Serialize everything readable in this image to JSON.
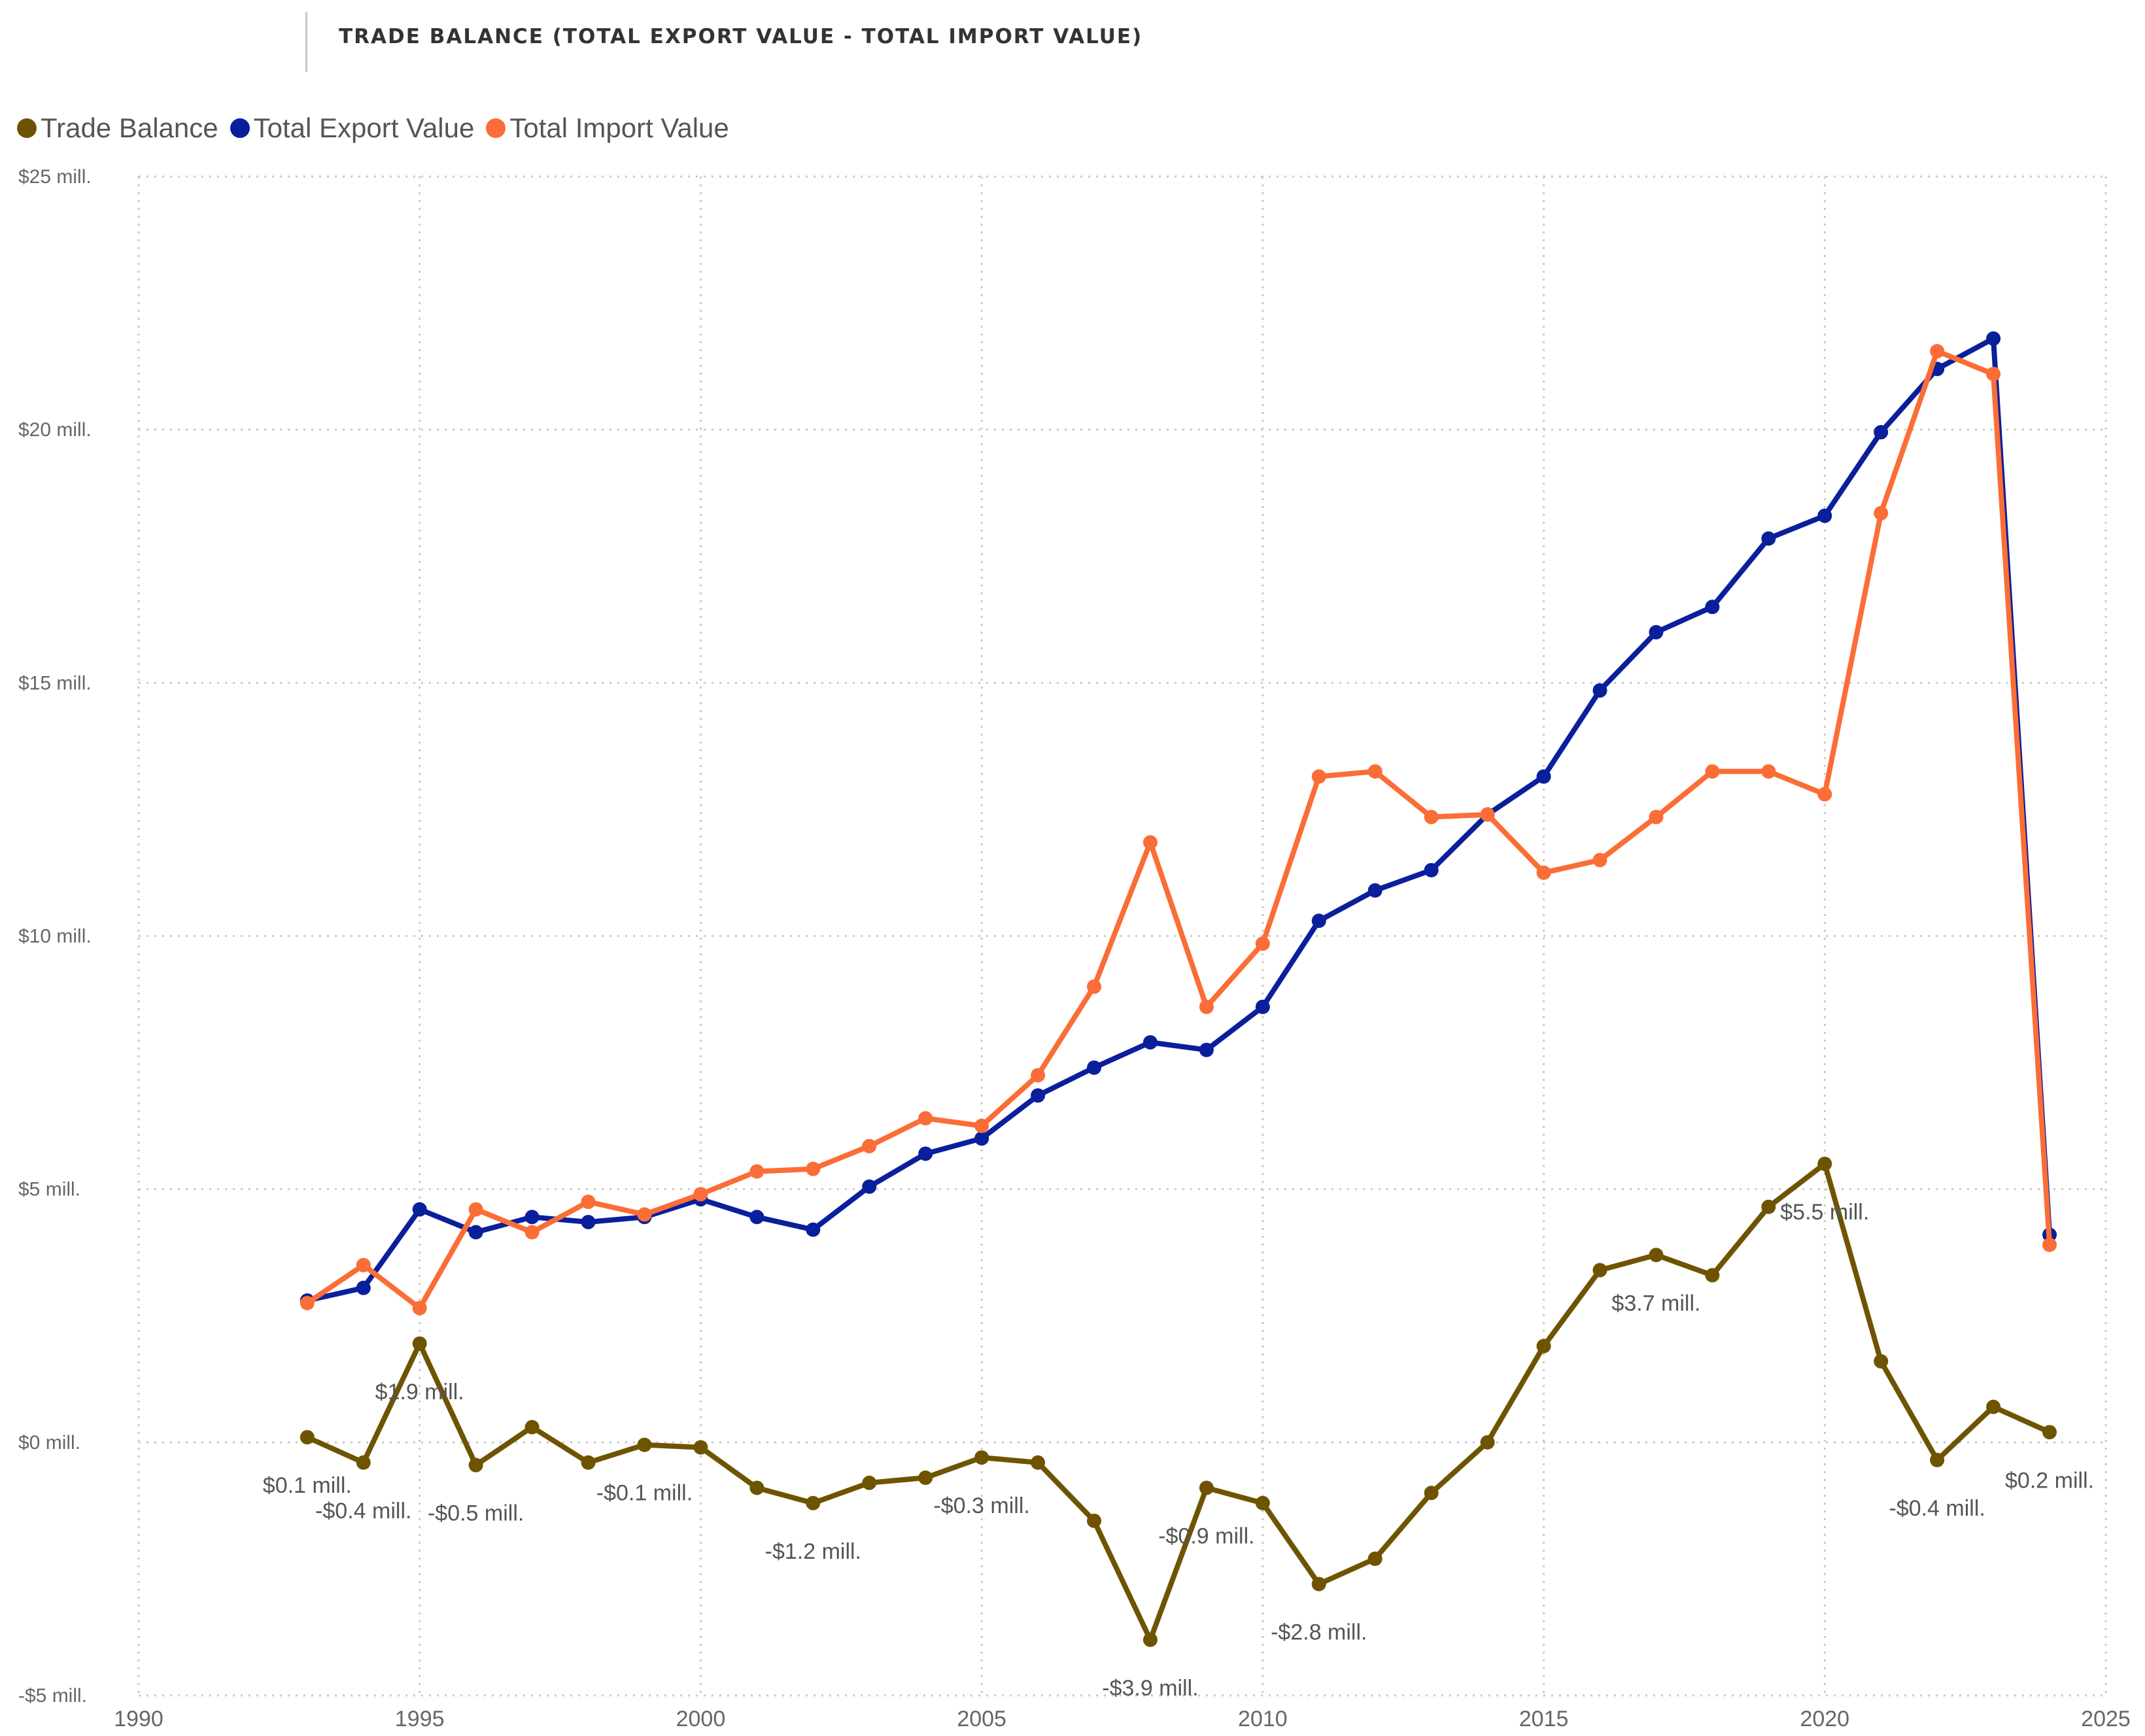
{
  "title": "TRADE BALANCE (TOTAL EXPORT VALUE - TOTAL IMPORT VALUE)",
  "legend": [
    {
      "label": "Trade Balance",
      "color": "#6e5400"
    },
    {
      "label": "Total Export Value",
      "color": "#0a1f9c"
    },
    {
      "label": "Total Import Value",
      "color": "#fb6d36"
    }
  ],
  "chart_data": {
    "type": "line",
    "title": "TRADE BALANCE (TOTAL EXPORT VALUE - TOTAL IMPORT VALUE)",
    "xlabel": "",
    "ylabel": "",
    "xlim": [
      1990,
      2025
    ],
    "ylim": [
      -5,
      25
    ],
    "x_ticks": [
      1990,
      1995,
      2000,
      2005,
      2010,
      2015,
      2020,
      2025
    ],
    "y_ticks": [
      {
        "value": -5,
        "label": "-$5 mill."
      },
      {
        "value": 0,
        "label": "$0 mill."
      },
      {
        "value": 5,
        "label": "$5 mill."
      },
      {
        "value": 10,
        "label": "$10 mill."
      },
      {
        "value": 15,
        "label": "$15 mill."
      },
      {
        "value": 20,
        "label": "$20 mill."
      },
      {
        "value": 25,
        "label": "$25 mill."
      }
    ],
    "grid": true,
    "legend_position": "top-left",
    "x": [
      1993,
      1994,
      1995,
      1996,
      1997,
      1998,
      1999,
      2000,
      2001,
      2002,
      2003,
      2004,
      2005,
      2006,
      2007,
      2008,
      2009,
      2010,
      2011,
      2012,
      2013,
      2014,
      2015,
      2016,
      2017,
      2018,
      2019,
      2020,
      2021,
      2022,
      2023,
      2024
    ],
    "series": [
      {
        "name": "Trade Balance",
        "color": "#6e5400",
        "values": [
          0.1,
          -0.4,
          1.95,
          -0.45,
          0.3,
          -0.4,
          -0.05,
          -0.1,
          -0.9,
          -1.2,
          -0.8,
          -0.7,
          -0.3,
          -0.4,
          -1.55,
          -3.9,
          -0.9,
          -1.2,
          -2.8,
          -2.3,
          -1.0,
          0.0,
          1.9,
          3.4,
          3.7,
          3.3,
          4.65,
          5.5,
          1.6,
          -0.35,
          0.7,
          0.2
        ]
      },
      {
        "name": "Total Export Value",
        "color": "#0a1f9c",
        "values": [
          2.8,
          3.05,
          4.6,
          4.15,
          4.45,
          4.35,
          4.45,
          4.8,
          4.45,
          4.2,
          5.05,
          5.7,
          6.0,
          6.85,
          7.4,
          7.9,
          7.75,
          8.6,
          10.3,
          10.9,
          11.3,
          12.4,
          13.15,
          14.85,
          16.0,
          16.5,
          17.85,
          18.3,
          19.95,
          21.2,
          21.8,
          4.1
        ]
      },
      {
        "name": "Total Import Value",
        "color": "#fb6d36",
        "values": [
          2.75,
          3.5,
          2.65,
          4.6,
          4.15,
          4.75,
          4.5,
          4.9,
          5.35,
          5.4,
          5.85,
          6.4,
          6.25,
          7.25,
          9.0,
          11.85,
          8.6,
          9.85,
          13.15,
          13.25,
          12.35,
          12.4,
          11.25,
          11.5,
          12.35,
          13.25,
          13.25,
          12.8,
          18.35,
          21.55,
          21.1,
          3.9
        ]
      }
    ],
    "data_labels": [
      {
        "series": "Trade Balance",
        "x": 1993,
        "text": "$0.1 mill.",
        "align": "below"
      },
      {
        "series": "Trade Balance",
        "x": 1994,
        "text": "-$0.4 mill.",
        "align": "below"
      },
      {
        "series": "Trade Balance",
        "x": 1995,
        "text": "$1.9 mill.",
        "align": "below"
      },
      {
        "series": "Trade Balance",
        "x": 1996,
        "text": "-$0.5 mill.",
        "align": "below"
      },
      {
        "series": "Trade Balance",
        "x": 1999,
        "text": "-$0.1 mill.",
        "align": "below"
      },
      {
        "series": "Trade Balance",
        "x": 2002,
        "text": "-$1.2 mill.",
        "align": "below"
      },
      {
        "series": "Trade Balance",
        "x": 2005,
        "text": "-$0.3 mill.",
        "align": "below"
      },
      {
        "series": "Trade Balance",
        "x": 2008,
        "text": "-$3.9 mill.",
        "align": "below"
      },
      {
        "series": "Trade Balance",
        "x": 2009,
        "text": "-$0.9 mill.",
        "align": "below"
      },
      {
        "series": "Trade Balance",
        "x": 2011,
        "text": "-$2.8 mill.",
        "align": "below"
      },
      {
        "series": "Trade Balance",
        "x": 2017,
        "text": "$3.7 mill.",
        "align": "below"
      },
      {
        "series": "Trade Balance",
        "x": 2020,
        "text": "$5.5 mill.",
        "align": "below"
      },
      {
        "series": "Trade Balance",
        "x": 2022,
        "text": "-$0.4 mill.",
        "align": "below"
      },
      {
        "series": "Trade Balance",
        "x": 2024,
        "text": "$0.2 mill.",
        "align": "below"
      }
    ]
  }
}
